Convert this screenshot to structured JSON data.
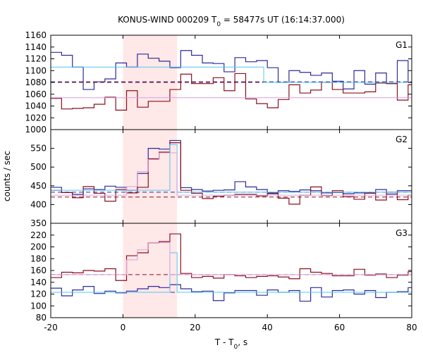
{
  "chart_data": {
    "type": "step-line",
    "title": {
      "prefix": "KONUS-WIND 000209 T",
      "sub": "0",
      "suffix": " = 58477s UT (16:14:37.000)"
    },
    "xlabel": {
      "prefix": "T - T",
      "sub": "0",
      "suffix": ", s"
    },
    "ylabel": "counts / sec",
    "xlim": [
      -20,
      80
    ],
    "xticks": [
      -20,
      0,
      20,
      40,
      60,
      80
    ],
    "highlight_interval": [
      0,
      15
    ],
    "highlight_color": "#ffe8e8",
    "colors": {
      "dark_blue": "#2b2b9a",
      "dark_red": "#8b0f1e",
      "light_blue": "#55c5f0",
      "violet": "#d9a0e0"
    },
    "panels": [
      {
        "label": "G1",
        "ylim": [
          1000,
          1160
        ],
        "yticks": [
          1000,
          1020,
          1040,
          1060,
          1080,
          1100,
          1120,
          1140,
          1160
        ],
        "bin_edges": [
          -20,
          -17,
          -14,
          -11,
          -8,
          -5,
          -2,
          1,
          4,
          7,
          10,
          13,
          16,
          19,
          22,
          25,
          28,
          31,
          34,
          37,
          40,
          43,
          46,
          49,
          52,
          55,
          58,
          61,
          64,
          67,
          70,
          73,
          76,
          79,
          82
        ],
        "series": [
          {
            "color_key": "dark_blue",
            "dashed_level": 1081,
            "values": [
              1131,
              1126,
              1106,
              1068,
              1081,
              1086,
              1113,
              1106,
              1128,
              1121,
              1116,
              1105,
              1134,
              1126,
              1113,
              1112,
              1098,
              1122,
              1115,
              1117,
              1105,
              1080,
              1100,
              1097,
              1092,
              1096,
              1082,
              1069,
              1100,
              1077,
              1096,
              1078,
              1117,
              1080
            ]
          },
          {
            "color_key": "dark_red",
            "dashed_level": 1080,
            "values": [
              1053,
              1035,
              1036,
              1037,
              1043,
              1055,
              1033,
              1066,
              1038,
              1048,
              1048,
              1068,
              1094,
              1078,
              1078,
              1088,
              1066,
              1095,
              1052,
              1044,
              1037,
              1051,
              1076,
              1062,
              1067,
              1080,
              1068,
              1062,
              1062,
              1064,
              1079,
              1078,
              1050,
              1076
            ]
          },
          {
            "color_key": "light_blue",
            "step_to": {
              "x": 39,
              "value": 1080
            },
            "level": 1106
          },
          {
            "color_key": "violet",
            "step_to": null,
            "level": 1054
          }
        ]
      },
      {
        "label": "G2",
        "ylim": [
          350,
          600
        ],
        "yticks": [
          350,
          400,
          450,
          500,
          550
        ],
        "bin_edges": [
          -20,
          -17,
          -14,
          -11,
          -8,
          -5,
          -2,
          1,
          4,
          7,
          10,
          13,
          16,
          19,
          22,
          25,
          28,
          31,
          34,
          37,
          40,
          43,
          46,
          49,
          52,
          55,
          58,
          61,
          64,
          67,
          70,
          73,
          76,
          79,
          82
        ],
        "series": [
          {
            "color_key": "dark_blue",
            "dashed_level": 433,
            "values": [
              446,
              432,
              427,
              442,
              440,
              449,
              446,
              438,
              483,
              550,
              548,
              571,
              445,
              440,
              436,
              438,
              439,
              461,
              447,
              440,
              431,
              437,
              435,
              439,
              437,
              431,
              432,
              429,
              431,
              432,
              440,
              428,
              437,
              437
            ]
          },
          {
            "color_key": "dark_red",
            "dashed_level": 420,
            "values": [
              438,
              432,
              418,
              448,
              430,
              409,
              440,
              431,
              446,
              522,
              540,
              565,
              438,
              430,
              416,
              422,
              425,
              427,
              427,
              423,
              429,
              417,
              401,
              425,
              447,
              424,
              437,
              421,
              414,
              430,
              412,
              433,
              413,
              425
            ]
          },
          {
            "color_key": "light_blue",
            "steps": [
              [
                -20,
                438
              ],
              [
                13,
                438
              ],
              [
                13,
                560
              ],
              [
                15,
                560
              ],
              [
                15,
                433
              ],
              [
                82,
                433
              ]
            ]
          },
          {
            "color_key": "violet",
            "steps": [
              [
                -20,
                425
              ],
              [
                1,
                425
              ],
              [
                1,
                448
              ],
              [
                4,
                448
              ],
              [
                4,
                488
              ],
              [
                7,
                488
              ],
              [
                7,
                520
              ],
              [
                10,
                520
              ],
              [
                10,
                538
              ],
              [
                15,
                538
              ],
              [
                15,
                425
              ],
              [
                82,
                425
              ]
            ]
          }
        ]
      },
      {
        "label": "G3",
        "ylim": [
          80,
          240
        ],
        "yticks": [
          80,
          100,
          120,
          140,
          160,
          180,
          200,
          220
        ],
        "bin_edges": [
          -20,
          -17,
          -14,
          -11,
          -8,
          -5,
          -2,
          1,
          4,
          7,
          10,
          13,
          16,
          19,
          22,
          25,
          28,
          31,
          34,
          37,
          40,
          43,
          46,
          49,
          52,
          55,
          58,
          61,
          64,
          67,
          70,
          73,
          76,
          79,
          82
        ],
        "series": [
          {
            "color_key": "dark_blue",
            "dashed_level": 123,
            "values": [
              130,
              117,
              127,
              133,
              121,
              125,
              122,
              125,
              129,
              133,
              131,
              136,
              129,
              124,
              125,
              109,
              122,
              126,
              126,
              118,
              127,
              123,
              126,
              108,
              131,
              115,
              126,
              127,
              120,
              126,
              114,
              123,
              124,
              131
            ]
          },
          {
            "color_key": "dark_red",
            "dashed_level": 153,
            "values": [
              148,
              157,
              156,
              160,
              159,
              163,
              143,
              185,
              190,
              207,
              209,
              222,
              155,
              148,
              150,
              147,
              153,
              151,
              148,
              150,
              151,
              149,
              146,
              163,
              157,
              155,
              151,
              151,
              162,
              152,
              154,
              148,
              152,
              158
            ]
          },
          {
            "color_key": "light_blue",
            "steps": [
              [
                -20,
                123
              ],
              [
                13,
                123
              ],
              [
                13,
                190
              ],
              [
                15,
                190
              ],
              [
                15,
                123
              ],
              [
                82,
                123
              ]
            ]
          },
          {
            "color_key": "violet",
            "steps": [
              [
                -20,
                153
              ],
              [
                1,
                153
              ],
              [
                1,
                178
              ],
              [
                4,
                178
              ],
              [
                4,
                195
              ],
              [
                7,
                195
              ],
              [
                7,
                207
              ],
              [
                13,
                207
              ],
              [
                13,
                153
              ],
              [
                82,
                153
              ]
            ]
          }
        ]
      }
    ]
  }
}
